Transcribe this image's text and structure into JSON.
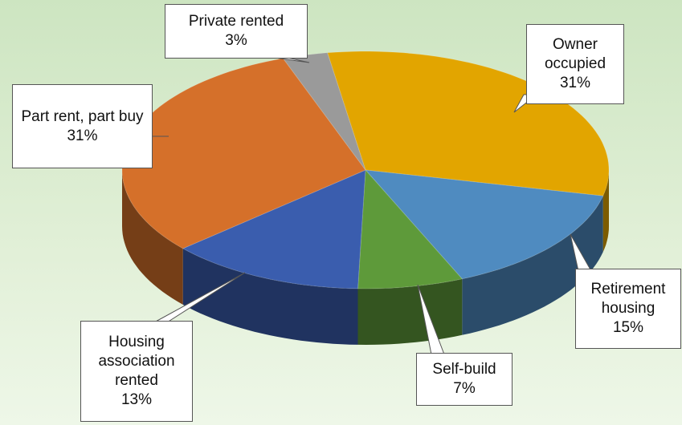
{
  "chart_data": {
    "type": "pie",
    "categories": [
      "Owner occupied",
      "Retirement housing",
      "Self-build",
      "Housing association rented",
      "Part rent, part buy",
      "Private rented"
    ],
    "values": [
      31,
      15,
      7,
      13,
      31,
      3
    ],
    "value_labels": [
      "31%",
      "15%",
      "7%",
      "13%",
      "31%",
      "3%"
    ],
    "colors": [
      "#e2a500",
      "#4f8bc0",
      "#5e9a3a",
      "#3a5dae",
      "#d5702a",
      "#9a9a9a"
    ]
  }
}
